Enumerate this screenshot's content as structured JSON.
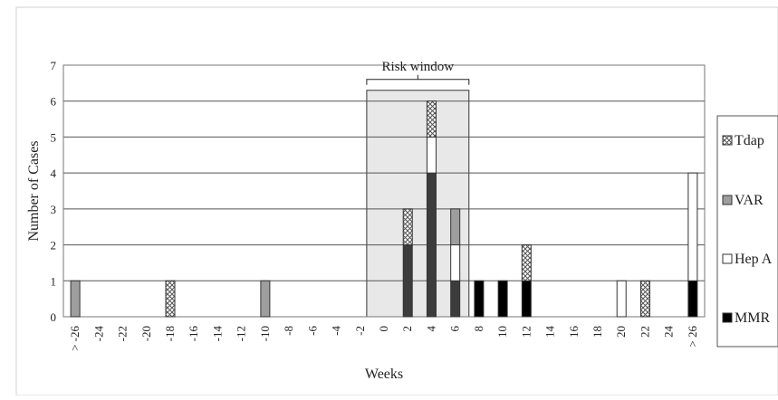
{
  "chart_data": {
    "type": "bar",
    "stacked": true,
    "xlabel": "Weeks",
    "ylabel": "Number of Cases",
    "ylim": [
      0,
      7
    ],
    "yticks": [
      0,
      1,
      2,
      3,
      4,
      5,
      6,
      7
    ],
    "grid": "horizontal",
    "legend_position": "right",
    "categories": [
      "> -26",
      "-24",
      "-22",
      "-20",
      "-18",
      "-16",
      "-14",
      "-12",
      "-10",
      "-8",
      "-6",
      "-4",
      "-2",
      "0",
      "2",
      "4",
      "6",
      "8",
      "10",
      "12",
      "14",
      "16",
      "18",
      "20",
      "22",
      "24",
      "> 26"
    ],
    "series": [
      {
        "name": "MMR",
        "color": "#000000",
        "values": [
          0,
          0,
          0,
          0,
          0,
          0,
          0,
          0,
          0,
          0,
          0,
          0,
          0,
          0,
          0,
          0,
          0,
          1,
          1,
          1,
          0,
          0,
          0,
          0,
          0,
          0,
          1
        ]
      },
      {
        "name": "Hep A",
        "color": "#ffffff",
        "values": [
          0,
          0,
          0,
          0,
          0,
          0,
          0,
          0,
          0,
          0,
          0,
          0,
          0,
          0,
          0,
          0,
          0,
          0,
          0,
          0,
          0,
          0,
          0,
          1,
          0,
          0,
          3
        ]
      },
      {
        "name": "VAR",
        "color": "#9e9e9e",
        "values": [
          1,
          0,
          0,
          0,
          0,
          0,
          0,
          0,
          1,
          0,
          0,
          0,
          0,
          0,
          0,
          0,
          0,
          0,
          0,
          0,
          0,
          0,
          0,
          0,
          0,
          0,
          0
        ]
      },
      {
        "name": "Tdap",
        "color": "crosshatch",
        "values": [
          0,
          0,
          0,
          0,
          1,
          0,
          0,
          0,
          0,
          0,
          0,
          0,
          0,
          0,
          0,
          0,
          0,
          0,
          0,
          1,
          0,
          0,
          0,
          0,
          1,
          0,
          0
        ]
      }
    ],
    "risk_window_bars": [
      {
        "category": "2",
        "segments": [
          {
            "series": "MMR-dark",
            "value": 2,
            "color": "#3c3c3c"
          },
          {
            "series": "Tdap",
            "value": 1
          }
        ]
      },
      {
        "category": "4",
        "segments": [
          {
            "series": "MMR-dark",
            "value": 4,
            "color": "#3c3c3c"
          },
          {
            "series": "Hep A",
            "value": 1
          },
          {
            "series": "Tdap",
            "value": 1
          }
        ]
      },
      {
        "category": "6",
        "segments": [
          {
            "series": "MMR-dark",
            "value": 1,
            "color": "#3c3c3c"
          },
          {
            "series": "Hep A",
            "value": 1
          },
          {
            "series": "VAR",
            "value": 1
          }
        ]
      }
    ],
    "annotation": {
      "label": "Risk window",
      "from_category": "0",
      "to_category": "6",
      "height": 6.3
    }
  }
}
